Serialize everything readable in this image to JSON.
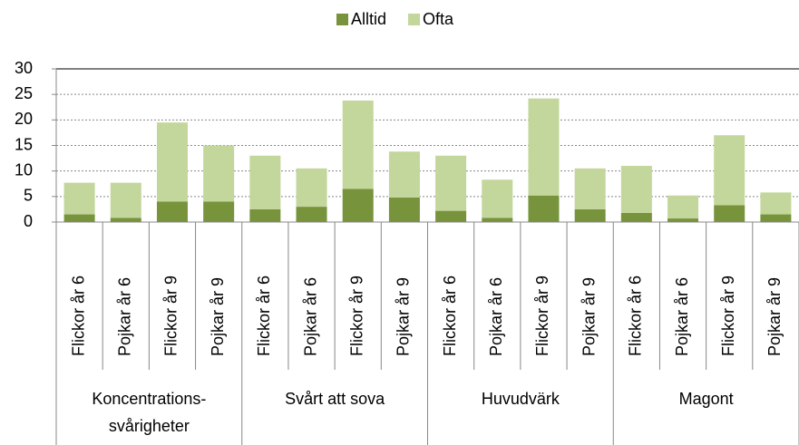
{
  "chart_data": {
    "type": "stacked_bar",
    "categories": [
      "Flickor år 6",
      "Pojkar år 6",
      "Flickor år 9",
      "Pojkar år 9",
      "Flickor år 6",
      "Pojkar år 6",
      "Flickor år 9",
      "Pojkar år 9",
      "Flickor år 6",
      "Pojkar år 6",
      "Flickor år 9",
      "Pojkar år 9",
      "Flickor år 6",
      "Pojkar år 6",
      "Flickor år 9",
      "Pojkar år 9"
    ],
    "groups": [
      [
        "Koncentrations-",
        "svårigheter"
      ],
      [
        "Svårt att sova"
      ],
      [
        "Huvudvärk"
      ],
      [
        "Magont"
      ]
    ],
    "series": [
      {
        "name": "Alltid",
        "color": "#77933c",
        "values": [
          1.5,
          0.8,
          4,
          4,
          2.5,
          3,
          6.5,
          4.8,
          2.2,
          0.8,
          5.2,
          2.5,
          1.8,
          0.7,
          3.3,
          1.5
        ]
      },
      {
        "name": "Ofta",
        "color": "#c3d69b",
        "values": [
          6.2,
          6.9,
          15.5,
          11,
          10.5,
          7.5,
          17.3,
          9,
          10.8,
          7.5,
          19,
          8,
          9.2,
          4.5,
          13.7,
          4.3
        ]
      }
    ],
    "ylim": [
      0,
      30
    ],
    "yticks": [
      0,
      5,
      10,
      15,
      20,
      25,
      30
    ],
    "grid": true,
    "legend": "top"
  }
}
